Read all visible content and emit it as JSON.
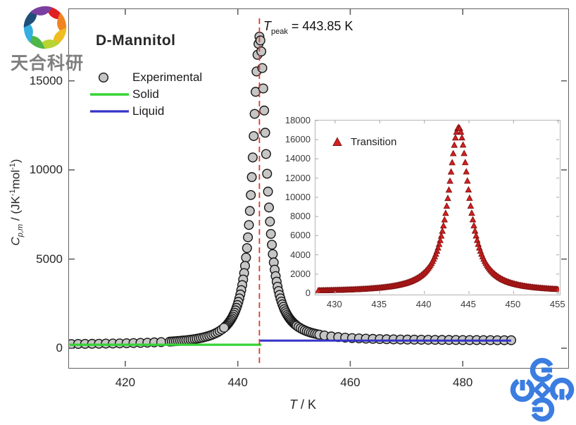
{
  "watermark": {
    "brand_text": "天合科研",
    "brand_text_color": "#7f7f7f",
    "pinwheel_petal_colors": [
      "#e02020",
      "#f08422",
      "#eebd20",
      "#b8d432",
      "#4cb648",
      "#35aee0",
      "#1f4e79",
      "#7a3fa0"
    ]
  },
  "corner_logo": {
    "color": "#3b7de0"
  },
  "chart_data": {
    "type": "scatter",
    "main": {
      "title": "D-Mannitol",
      "xlabel_parts": {
        "sym": "T",
        "rest": " / K"
      },
      "ylabel_parts": {
        "sym": "C",
        "sub": "p,m",
        "mid": " / (JK",
        "sup1": "-1",
        "unit": "mol",
        "sup2": "-1",
        "end": ")"
      },
      "xlim": [
        410,
        498.5
      ],
      "ylim": [
        -1025,
        19020
      ],
      "x_ticks": [
        420,
        440,
        460,
        480
      ],
      "y_ticks": [
        0,
        5000,
        10000,
        15000
      ],
      "frame_color": "#616161",
      "peak": {
        "T": 443.85,
        "Cp": 17300
      },
      "annotation": {
        "sym": "T",
        "sub": "peak",
        "rest": " = 443.85 K",
        "line_color": "#e63327",
        "line_x": 443.85
      },
      "legend": [
        {
          "label": "Experimental",
          "marker": "circle",
          "fill": "#c6c6c6",
          "edge": "#141414"
        },
        {
          "label": "Solid",
          "marker": "line",
          "color": "#35d435"
        },
        {
          "label": "Liquid",
          "marker": "line",
          "color": "#3434c8"
        }
      ],
      "series": [
        {
          "name": "Experimental",
          "type": "scatter",
          "marker": "circle",
          "marker_radius": 6.3,
          "fill": "#c6c6c6",
          "edge": "#141414",
          "model": {
            "center": 443.85,
            "amplitude": 17050,
            "hwhm": 1.5,
            "solid_base_at_410": 200,
            "solid_base_slope": 1.2,
            "liquid_base": 430
          },
          "t_segments": [
            [
              410.4,
              427.6,
              1.23
            ],
            [
              427.9,
              437.4,
              0.37
            ],
            [
              443.68,
              437.56,
              -0.17
            ],
            [
              443.85,
              450.48,
              0.17
            ],
            [
              450.8,
              454.5,
              0.37
            ],
            [
              455.4,
              488.7,
              1.23
            ]
          ],
          "sample_points": [
            [
              410,
              200
            ],
            [
              420,
              215
            ],
            [
              428,
              330
            ],
            [
              435,
              640
            ],
            [
              440,
              2600
            ],
            [
              442,
              5800
            ],
            [
              443,
              11200
            ],
            [
              443.85,
              17300
            ],
            [
              445,
              11000
            ],
            [
              446,
              6400
            ],
            [
              448,
              2700
            ],
            [
              450,
              1450
            ],
            [
              454,
              560
            ],
            [
              460,
              440
            ],
            [
              470,
              430
            ],
            [
              480,
              430
            ],
            [
              489,
              430
            ]
          ]
        },
        {
          "name": "Solid",
          "type": "line",
          "color": "#35d435",
          "width": 3.2,
          "points": [
            [
              410.1,
              197
            ],
            [
              444.2,
              197
            ]
          ]
        },
        {
          "name": "Liquid",
          "type": "line",
          "color": "#3434c8",
          "width": 3.0,
          "points": [
            [
              443.9,
              430
            ],
            [
              488.6,
              430
            ]
          ]
        }
      ]
    },
    "inset": {
      "xlim": [
        427.8,
        455.1
      ],
      "ylim": [
        -75,
        18000
      ],
      "x_ticks": [
        430,
        435,
        440,
        445,
        450,
        455
      ],
      "y_ticks": [
        0,
        2000,
        4000,
        6000,
        8000,
        10000,
        12000,
        14000,
        16000,
        18000
      ],
      "frame_color": "#b4b4b4",
      "peak": {
        "T": 443.85,
        "Cp": 17300
      },
      "legend": [
        {
          "label": "Transition",
          "marker": "triangle",
          "fill": "#d42020",
          "edge": "#7d0f0f"
        }
      ],
      "series": [
        {
          "name": "Transition",
          "type": "scatter",
          "marker": "triangle",
          "marker_size": 8.5,
          "fill": "#d42020",
          "edge": "#7d0f0f",
          "model": {
            "center": 443.85,
            "amplitude": 17160,
            "hwhm": 1.4,
            "base": 140
          },
          "t_segments": [
            [
              443.85,
              428.0,
              -0.122
            ],
            [
              443.97,
              454.95,
              0.122
            ]
          ],
          "sample_points": [
            [
              428,
              150
            ],
            [
              432,
              230
            ],
            [
              436,
              520
            ],
            [
              438,
              900
            ],
            [
              440,
              2000
            ],
            [
              442,
              5500
            ],
            [
              443,
              10500
            ],
            [
              443.85,
              17300
            ],
            [
              444.5,
              14500
            ],
            [
              445,
              10500
            ],
            [
              446,
              5800
            ],
            [
              447,
              3200
            ],
            [
              448,
              1900
            ],
            [
              450,
              800
            ],
            [
              452,
              400
            ],
            [
              455,
              200
            ]
          ]
        }
      ]
    }
  }
}
